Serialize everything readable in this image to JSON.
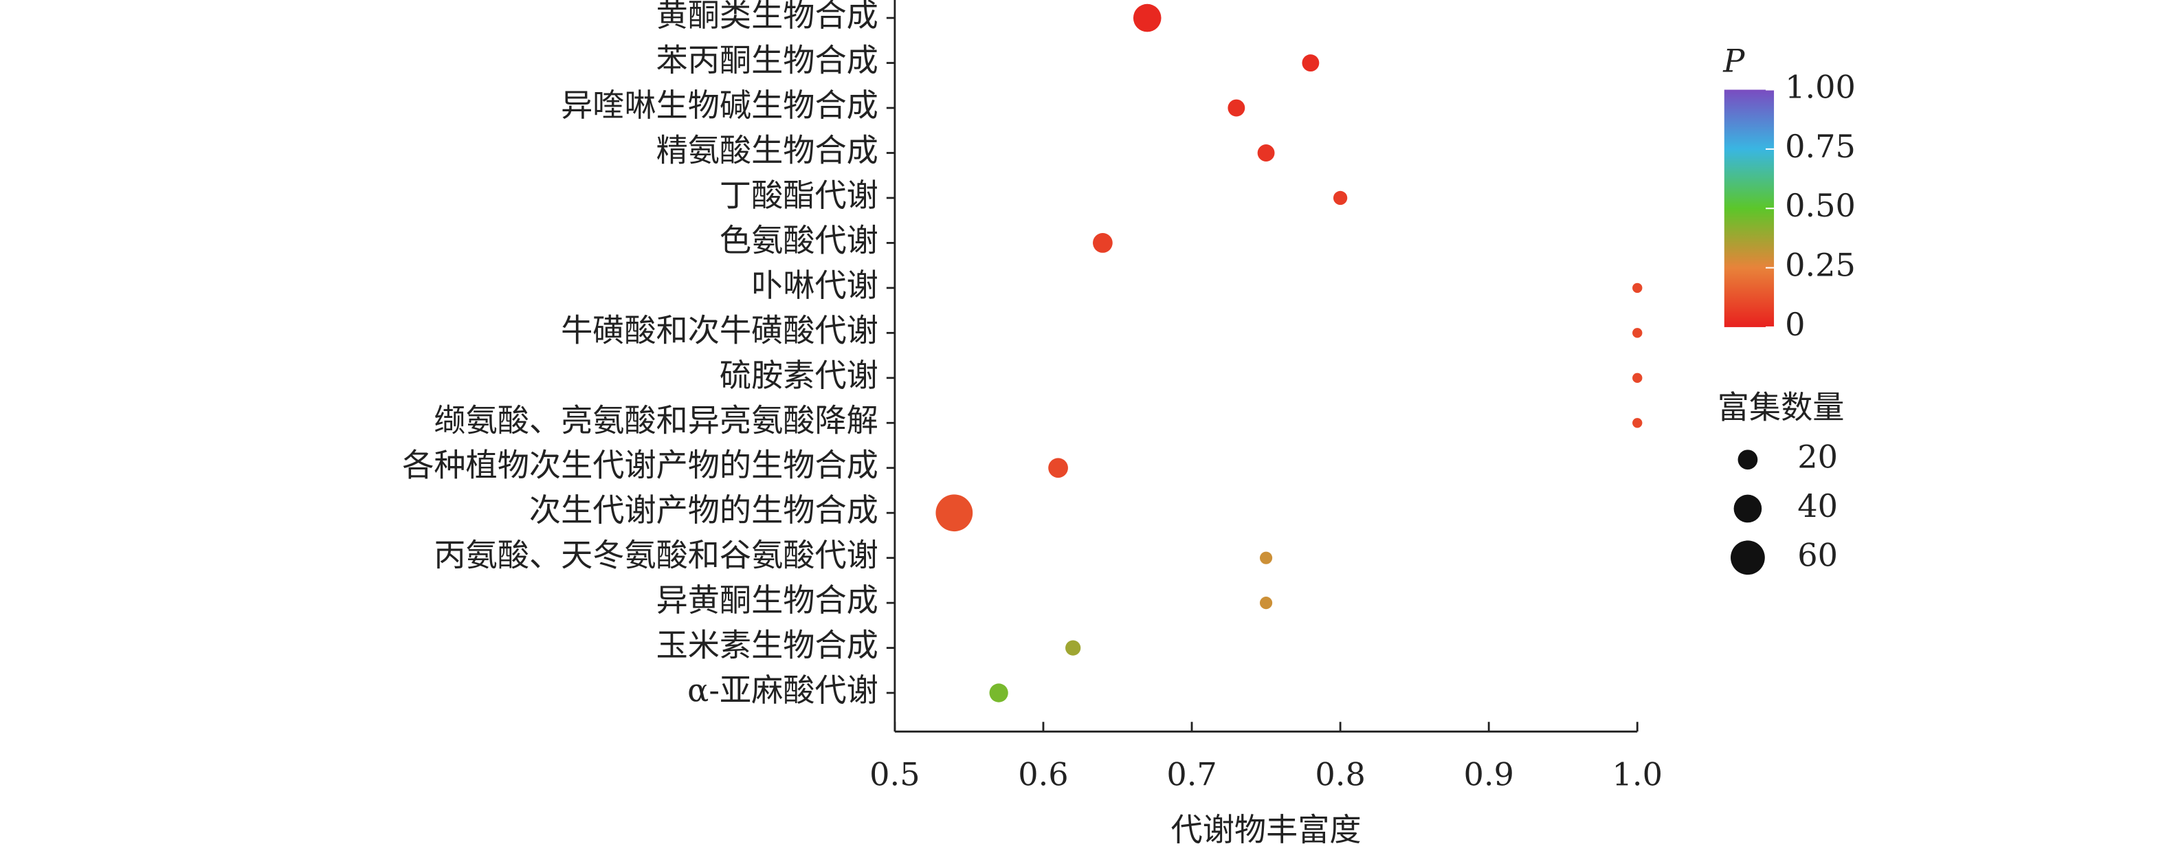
{
  "chart_data": {
    "type": "scatter",
    "x_label": "代谢物丰富度",
    "categories": [
      "黄酮类生物合成",
      "苯丙酮生物合成",
      "异喹啉生物碱生物合成",
      "精氨酸生物合成",
      "丁酸酯代谢",
      "色氨酸代谢",
      "卟啉代谢",
      "牛磺酸和次牛磺酸代谢",
      "硫胺素代谢",
      "缬氨酸、亮氨酸和异亮氨酸降解",
      "各种植物次生代谢产物的生物合成",
      "次生代谢产物的生物合成",
      "丙氨酸、天冬氨酸和谷氨酸代谢",
      "异黄酮生物合成",
      "玉米素生物合成",
      "α-亚麻酸代谢"
    ],
    "x": [
      0.67,
      0.78,
      0.73,
      0.75,
      0.8,
      0.64,
      1.0,
      1.0,
      1.0,
      1.0,
      0.61,
      0.54,
      0.75,
      0.75,
      0.62,
      0.57
    ],
    "sizes": [
      40,
      15,
      15,
      15,
      10,
      20,
      5,
      5,
      5,
      5,
      20,
      70,
      8,
      8,
      12,
      18
    ],
    "p_values": [
      0.02,
      0.03,
      0.04,
      0.05,
      0.07,
      0.08,
      0.1,
      0.1,
      0.1,
      0.1,
      0.1,
      0.12,
      0.3,
      0.3,
      0.38,
      0.45
    ],
    "xlim": [
      0.5,
      1.0
    ],
    "xticks": [
      0.5,
      0.6,
      0.7,
      0.8,
      0.9,
      {
        "value": 1.0,
        "label": "1.0"
      }
    ],
    "colorbar": {
      "title": "P",
      "lim": [
        0,
        1
      ],
      "ticks": [
        0,
        0.25,
        {
          "value": 0.5,
          "label": "0.50"
        },
        0.75,
        {
          "value": 1.0,
          "label": "1.00"
        }
      ],
      "colormap": [
        [
          0,
          "#e8201e"
        ],
        [
          0.25,
          "#e8833a"
        ],
        [
          0.5,
          "#5cc62a"
        ],
        [
          0.75,
          "#39b6e2"
        ],
        [
          1,
          "#7a4cc0"
        ]
      ]
    },
    "size_legend": {
      "title": "富集数量",
      "values": [
        20,
        40,
        60
      ],
      "color": "#111111"
    }
  }
}
